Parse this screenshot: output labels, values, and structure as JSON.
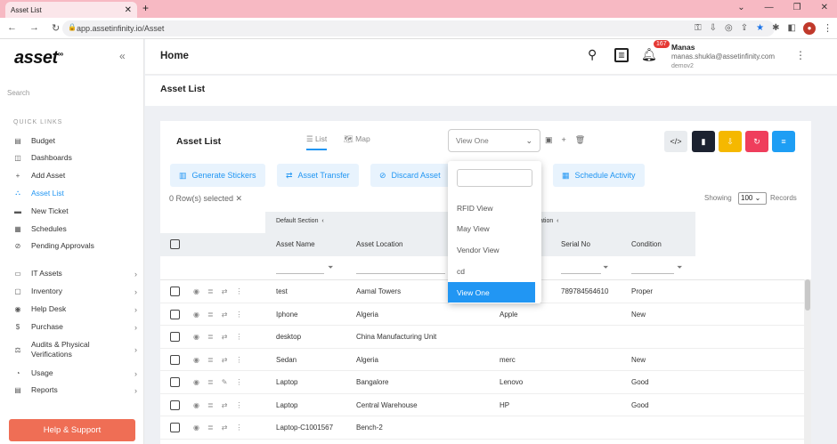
{
  "browser": {
    "tab_title": "Asset List",
    "tab_close": "✕",
    "new_tab": "+",
    "url": "app.assetinfinity.io/Asset",
    "window_controls": [
      "⌄",
      "—",
      "❐",
      "✕"
    ]
  },
  "sidebar": {
    "logo": "asset",
    "logo_sup": "∞",
    "collapse_icon": "«",
    "search_placeholder": "Search",
    "quick_links_heading": "QUICK LINKS",
    "quick_links": [
      {
        "label": "Budget",
        "icon": "budget-icon",
        "glyph": "▤"
      },
      {
        "label": "Dashboards",
        "icon": "dashboard-icon",
        "glyph": "◫"
      },
      {
        "label": "Add Asset",
        "icon": "plus-icon",
        "glyph": "+"
      },
      {
        "label": "Asset List",
        "icon": "sitemap-icon",
        "glyph": "⛬",
        "active": true
      },
      {
        "label": "New Ticket",
        "icon": "ticket-icon",
        "glyph": "▬"
      },
      {
        "label": "Schedules",
        "icon": "calendar-icon",
        "glyph": "▦"
      },
      {
        "label": "Pending Approvals",
        "icon": "approval-icon",
        "glyph": "⊘"
      }
    ],
    "modules": [
      {
        "label": "IT Assets",
        "icon": "laptop-icon",
        "glyph": "▭"
      },
      {
        "label": "Inventory",
        "icon": "inventory-icon",
        "glyph": "▢"
      },
      {
        "label": "Help Desk",
        "icon": "helpdesk-icon",
        "glyph": "◉"
      },
      {
        "label": "Purchase",
        "icon": "dollar-icon",
        "glyph": "$"
      },
      {
        "label": "Audits & Physical Verifications",
        "icon": "audit-icon",
        "glyph": "⚖"
      },
      {
        "label": "Usage",
        "icon": "usage-icon",
        "glyph": "◔"
      },
      {
        "label": "Reports",
        "icon": "report-icon",
        "glyph": "▤"
      }
    ],
    "help_button": "Help & Support"
  },
  "header": {
    "title": "Home",
    "notification_count": "167",
    "user_name": "Manas",
    "user_email": "manas.shukla@assetinfinity.com",
    "instance": "demov2"
  },
  "page": {
    "title": "Asset List",
    "card_title": "Asset List",
    "tabs": {
      "list": "List",
      "map": "Map"
    },
    "view_select": "View One",
    "toolbar_colors": {
      "code": "#e9ecef",
      "doc": "#1c2230",
      "download": "#f5b800",
      "refresh": "#ef3e5c",
      "menu": "#1e9ef4"
    },
    "actions": [
      "Generate Stickers",
      "Asset Transfer",
      "Discard Asset",
      "Schedule Activity"
    ],
    "rows_selected": "0 Row(s) selected ✕",
    "showing_label": "Showing",
    "records_per_page": "100",
    "records_label": "Records"
  },
  "table": {
    "group_1": "Default Section",
    "group_2": "ormation",
    "columns": [
      "Asset Name",
      "Asset Location",
      "Serial No",
      "Condition"
    ],
    "rows": [
      {
        "name": "test",
        "location": "Aamal Towers",
        "brand": "",
        "serial": "789784564610",
        "condition": "Proper"
      },
      {
        "name": "Iphone",
        "location": "Algeria",
        "brand": "Apple",
        "serial": "",
        "condition": "New"
      },
      {
        "name": "desktop",
        "location": "China Manufacturing Unit",
        "brand": "",
        "serial": "",
        "condition": ""
      },
      {
        "name": "Sedan",
        "location": "Algeria",
        "brand": "merc",
        "serial": "",
        "condition": "New"
      },
      {
        "name": "Laptop",
        "location": "Bangalore",
        "brand": "Lenovo",
        "serial": "",
        "condition": "Good"
      },
      {
        "name": "Laptop",
        "location": "Central Warehouse",
        "brand": "HP",
        "serial": "",
        "condition": "Good"
      },
      {
        "name": "Laptop-C1001567",
        "location": "Bench-2",
        "brand": "",
        "serial": "",
        "condition": ""
      }
    ]
  },
  "view_dropdown": {
    "options": [
      "RFID View",
      "May View",
      "Vendor View",
      "cd",
      "View One"
    ],
    "selected": "View One"
  }
}
